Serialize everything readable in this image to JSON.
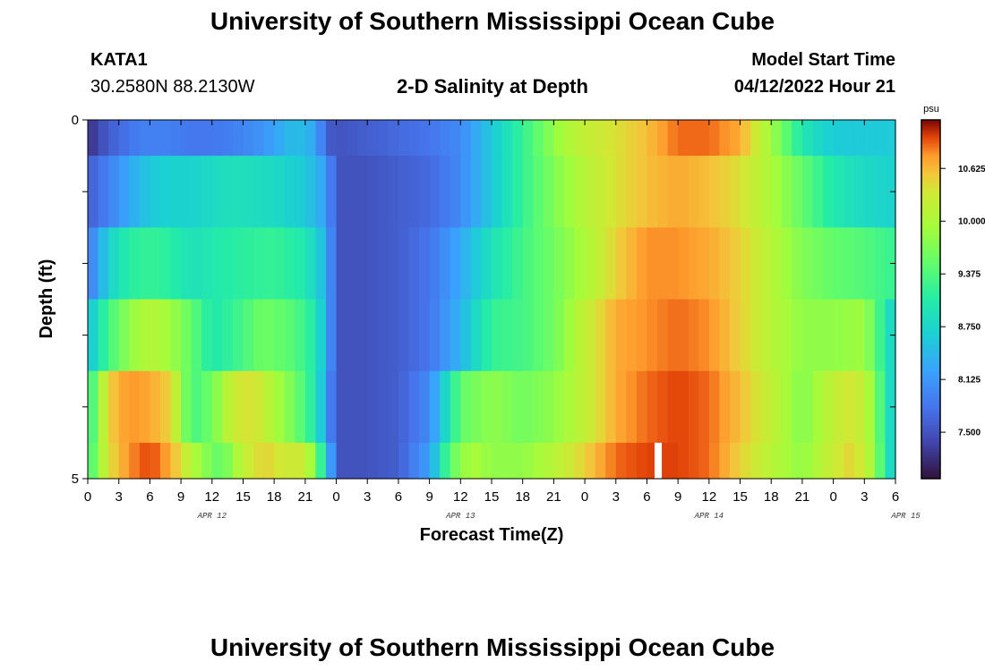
{
  "header": {
    "title": "University of Southern Mississippi Ocean Cube",
    "station_id": "KATA1",
    "coords": "30.2580N  88.2130W",
    "subtitle": "2-D Salinity at Depth",
    "model_start_label": "Model Start Time",
    "model_start_value": "04/12/2022 Hour 21"
  },
  "footer": {
    "title": "University of Southern Mississippi Ocean Cube"
  },
  "chart_data": {
    "type": "heatmap",
    "title": "2-D Salinity at Depth",
    "xlabel": "Forecast Time(Z)",
    "ylabel": "Depth (ft)",
    "colorbar_label": "psu",
    "colorbar_ticks": [
      "7.500",
      "8.125",
      "8.750",
      "9.375",
      "10.000",
      "10.625"
    ],
    "colorbar_values": [
      7.5,
      8.125,
      8.75,
      9.375,
      10.0,
      10.625
    ],
    "colorbar_range": [
      6.95,
      11.2
    ],
    "x_tick_labels": [
      "0",
      "3",
      "6",
      "9",
      "12",
      "15",
      "18",
      "21",
      "0",
      "3",
      "6",
      "9",
      "12",
      "15",
      "18",
      "21",
      "0",
      "3",
      "6",
      "9",
      "12",
      "15",
      "18",
      "21",
      "0",
      "3",
      "6"
    ],
    "x_hours_range": [
      0,
      78
    ],
    "date_labels": [
      {
        "text": "APR 12",
        "hour": 12
      },
      {
        "text": "APR 13",
        "hour": 36
      },
      {
        "text": "APR 14",
        "hour": 60
      },
      {
        "text": "APR 15",
        "hour": 79
      }
    ],
    "y_tick_labels": [
      "0",
      "5"
    ],
    "y_range": [
      0,
      5
    ],
    "depth_bands": [
      {
        "depth_range": [
          0,
          0.5
        ],
        "hours": [
          0,
          2,
          5,
          8,
          11,
          14,
          17,
          20,
          22,
          23,
          24,
          27,
          30,
          33,
          36,
          38,
          40,
          42,
          44,
          46,
          48,
          51,
          54,
          57,
          60,
          63,
          65,
          67,
          69,
          71,
          73,
          76,
          78
        ],
        "values": [
          7.2,
          7.6,
          7.9,
          7.9,
          7.8,
          7.9,
          8.1,
          8.5,
          8.3,
          7.6,
          7.5,
          7.6,
          7.7,
          7.8,
          8.0,
          8.4,
          8.8,
          9.2,
          9.6,
          10.0,
          10.2,
          10.4,
          10.6,
          10.9,
          10.9,
          10.7,
          10.2,
          9.6,
          9.0,
          8.7,
          8.6,
          8.6,
          8.6
        ]
      },
      {
        "depth_range": [
          0.5,
          1.5
        ],
        "hours": [
          0,
          2,
          4,
          6,
          8,
          10,
          14,
          18,
          21,
          23,
          24,
          27,
          30,
          33,
          36,
          39,
          42,
          45,
          48,
          51,
          54,
          57,
          60,
          63,
          66,
          69,
          72,
          75,
          78
        ],
        "values": [
          7.6,
          7.9,
          8.3,
          8.6,
          8.7,
          8.7,
          8.9,
          8.8,
          8.6,
          8.2,
          7.5,
          7.5,
          7.6,
          7.7,
          8.0,
          8.6,
          9.2,
          9.7,
          10.1,
          10.4,
          10.6,
          10.7,
          10.6,
          10.4,
          10.0,
          9.5,
          9.0,
          8.8,
          8.7
        ]
      },
      {
        "depth_range": [
          1.5,
          2.5
        ],
        "hours": [
          0,
          2,
          4,
          6,
          8,
          10,
          14,
          18,
          21,
          23,
          24,
          27,
          30,
          33,
          36,
          39,
          42,
          45,
          48,
          51,
          54,
          57,
          60,
          63,
          66,
          69,
          72,
          75,
          78
        ],
        "values": [
          7.8,
          8.7,
          9.1,
          9.2,
          9.1,
          8.9,
          9.1,
          9.2,
          9.0,
          8.4,
          7.5,
          7.5,
          7.6,
          7.8,
          8.3,
          8.9,
          9.3,
          9.6,
          10.0,
          10.5,
          10.8,
          10.8,
          10.7,
          10.5,
          10.1,
          9.7,
          9.5,
          9.4,
          9.2
        ]
      },
      {
        "depth_range": [
          2.5,
          3.5
        ],
        "hours": [
          0,
          2,
          4,
          6,
          8,
          10,
          12,
          14,
          17,
          20,
          22,
          23,
          24,
          27,
          30,
          33,
          36,
          39,
          42,
          45,
          48,
          51,
          54,
          57,
          60,
          63,
          66,
          69,
          72,
          75,
          78
        ],
        "values": [
          8.5,
          9.3,
          9.8,
          10.1,
          9.9,
          9.5,
          9.0,
          9.2,
          9.6,
          9.4,
          9.0,
          8.4,
          7.5,
          7.5,
          7.6,
          7.8,
          8.4,
          9.2,
          9.3,
          9.6,
          10.2,
          10.7,
          10.8,
          10.9,
          10.8,
          10.5,
          10.1,
          9.8,
          9.8,
          9.9,
          8.6
        ]
      },
      {
        "depth_range": [
          3.5,
          4.5
        ],
        "hours": [
          0,
          1,
          2,
          4,
          6,
          8,
          10,
          12,
          14,
          16,
          18,
          20,
          22,
          23,
          24,
          27,
          30,
          33,
          36,
          39,
          42,
          45,
          48,
          51,
          54,
          57,
          60,
          63,
          66,
          69,
          72,
          74,
          76,
          77,
          78
        ],
        "values": [
          9.0,
          9.8,
          10.5,
          10.8,
          10.7,
          10.5,
          9.3,
          9.6,
          10.3,
          10.4,
          10.0,
          9.6,
          9.0,
          8.2,
          7.5,
          7.5,
          7.6,
          8.0,
          9.5,
          9.8,
          9.6,
          9.8,
          10.2,
          10.7,
          10.9,
          11.0,
          10.9,
          10.6,
          10.2,
          9.7,
          10.2,
          10.4,
          9.8,
          9.0,
          8.6
        ]
      },
      {
        "depth_range": [
          4.5,
          5.0
        ],
        "hours": [
          0,
          1,
          2,
          4,
          6,
          8,
          10,
          12,
          13,
          15,
          17,
          19,
          21,
          22,
          23,
          24,
          27,
          30,
          33,
          35,
          37,
          39,
          42,
          45,
          48,
          51,
          54,
          57,
          60,
          63,
          66,
          69,
          72,
          74,
          76,
          77,
          78
        ],
        "values": [
          9.2,
          9.8,
          10.4,
          10.8,
          11.0,
          10.7,
          10.1,
          9.6,
          9.5,
          10.2,
          10.5,
          10.3,
          10.3,
          9.6,
          8.8,
          7.5,
          7.5,
          7.6,
          8.2,
          9.5,
          10.0,
          9.8,
          9.8,
          10.1,
          10.5,
          10.9,
          11.0,
          11.0,
          10.9,
          10.5,
          10.1,
          9.8,
          10.3,
          10.5,
          9.9,
          9.0,
          8.6
        ]
      }
    ],
    "missing_marker": {
      "hour": 55,
      "depth_range": [
        4.5,
        5.0
      ]
    }
  }
}
